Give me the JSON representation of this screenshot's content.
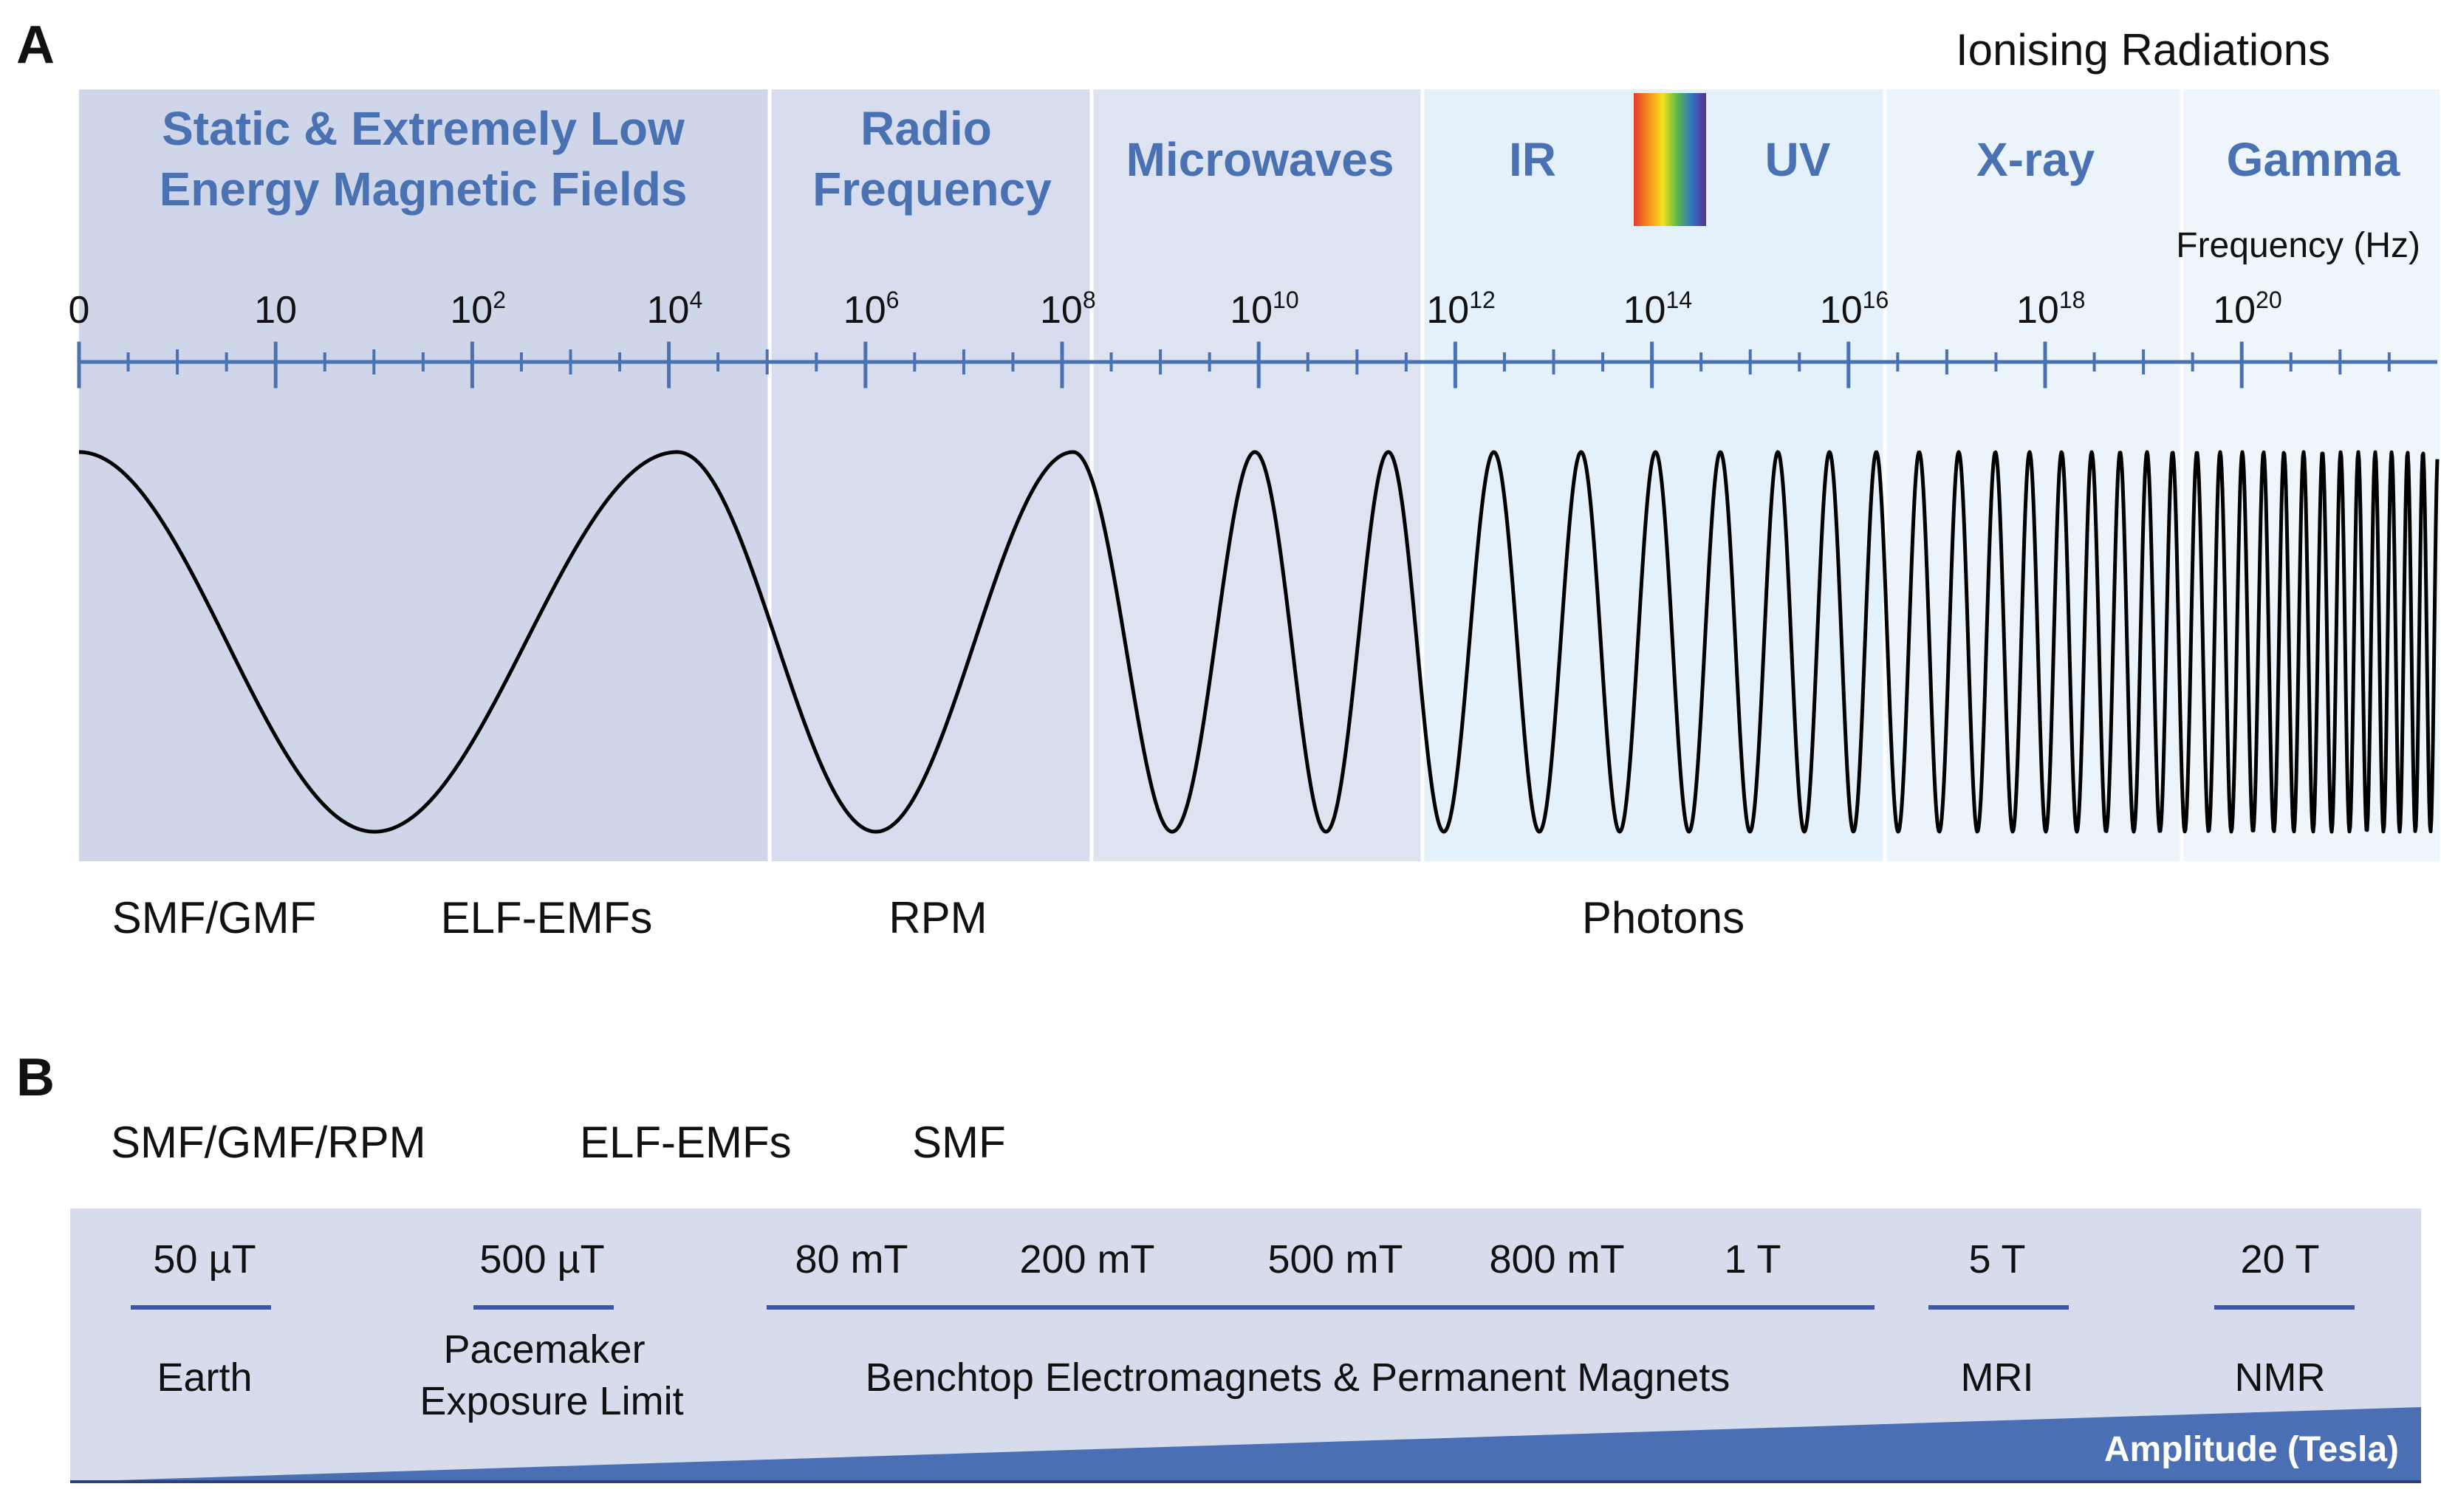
{
  "panel_a": {
    "letter": "A",
    "ionising_label": "Ionising Radiations",
    "bands": [
      {
        "line1": "Static & Extremely Low",
        "line2": "Energy Magnetic Fields",
        "fill": "#d0d6e9"
      },
      {
        "line1": "Radio",
        "line2": "Frequency",
        "fill": "#d7ddee"
      },
      {
        "line1": "Microwaves",
        "line2": "",
        "fill": "#dde3f1"
      },
      {
        "line1": "IR",
        "line2": "",
        "fill": "#e5f1fa"
      },
      {
        "line1": "UV",
        "line2": "",
        "fill": "#e5f1fa"
      },
      {
        "line1": "X-ray",
        "line2": "",
        "fill": "#ebf4fb"
      },
      {
        "line1": "Gamma",
        "line2": "",
        "fill": "#eef6fc"
      }
    ],
    "frequency_axis_label": "Frequency (Hz)",
    "tick_labels": [
      {
        "base": "0",
        "exp": ""
      },
      {
        "base": "10",
        "exp": ""
      },
      {
        "base": "10",
        "exp": "2"
      },
      {
        "base": "10",
        "exp": "4"
      },
      {
        "base": "10",
        "exp": "6"
      },
      {
        "base": "10",
        "exp": "8"
      },
      {
        "base": "10",
        "exp": "10"
      },
      {
        "base": "10",
        "exp": "12"
      },
      {
        "base": "10",
        "exp": "14"
      },
      {
        "base": "10",
        "exp": "16"
      },
      {
        "base": "10",
        "exp": "18"
      },
      {
        "base": "10",
        "exp": "20"
      }
    ],
    "bottom_labels": [
      "SMF/GMF",
      "ELF-EMFs",
      "RPM",
      "Photons"
    ],
    "colors": {
      "axis": "#4a72b3",
      "band_text": "#4a72b3",
      "wave": "#000000",
      "divider": "#ffffff"
    }
  },
  "panel_b": {
    "letter": "B",
    "top_labels": [
      "SMF/GMF/RPM",
      "ELF-EMFs",
      "SMF"
    ],
    "amplitudes": [
      "50 µT",
      "500 µT",
      "80 mT",
      "200 mT",
      "500 mT",
      "800 mT",
      "1 T",
      "5 T",
      "20 T"
    ],
    "applications": [
      {
        "line1": "Earth",
        "line2": ""
      },
      {
        "line1": "Pacemaker",
        "line2": "Exposure Limit"
      },
      {
        "line1": "Benchtop Electromagnets & Permanent Magnets",
        "line2": ""
      },
      {
        "line1": "MRI",
        "line2": ""
      },
      {
        "line1": "NMR",
        "line2": ""
      }
    ],
    "amplitude_axis_label": "Amplitude (Tesla)",
    "colors": {
      "box": "#d6dcec",
      "wedge": "#4a6fb5",
      "rule": "#3f56a8"
    }
  }
}
